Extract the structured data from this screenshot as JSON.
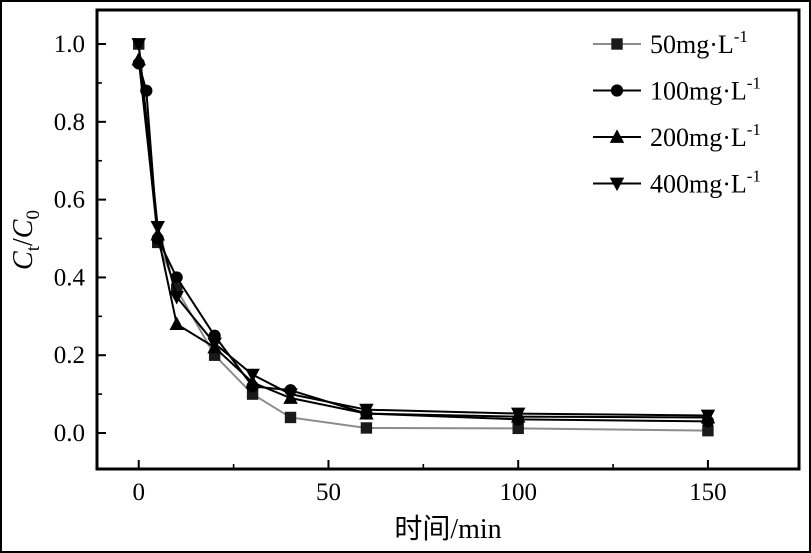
{
  "figure": {
    "background": "#ffffff",
    "border_color": "#000000",
    "frame_color": "#000000"
  },
  "chart_data": {
    "type": "line",
    "title": "",
    "xlabel": "时间/min",
    "ylabel_plain": "Ct/C0",
    "ylabel_parts": [
      {
        "t": "C",
        "i": true
      },
      {
        "t": "t",
        "s": "sub"
      },
      {
        "t": "/"
      },
      {
        "t": "C",
        "i": true
      },
      {
        "t": "0",
        "s": "sub"
      }
    ],
    "xlim": [
      -11,
      174
    ],
    "ylim": [
      -0.0925,
      1.0875
    ],
    "x_ticks": [
      0,
      50,
      100,
      150
    ],
    "x_tick_labels": [
      "0",
      "50",
      "100",
      "150"
    ],
    "x_minor_ticks": [
      25,
      75,
      125
    ],
    "y_ticks": [
      0.0,
      0.2,
      0.4,
      0.6,
      0.8,
      1.0
    ],
    "y_tick_labels": [
      "0.0",
      "0.2",
      "0.4",
      "0.6",
      "0.8",
      "1.0"
    ],
    "y_minor_ticks": [
      0.1,
      0.3,
      0.5,
      0.7,
      0.9
    ],
    "grid": false,
    "legend_position": "top-right",
    "x": [
      0,
      5,
      10,
      20,
      30,
      40,
      60,
      100,
      150
    ],
    "series": [
      {
        "name": "50mg·L",
        "exp": "-1",
        "marker": "square",
        "line_color": "#8c8c8c",
        "marker_color": "#1a1a1a",
        "values": [
          1.0,
          0.49,
          0.37,
          0.2,
          0.1,
          0.04,
          0.013,
          0.012,
          0.006
        ]
      },
      {
        "name": "100mg·L",
        "exp": "-1",
        "marker": "circle",
        "line_color": "#000000",
        "marker_color": "#000000",
        "x": [
          0,
          2,
          5,
          10,
          20,
          30,
          40,
          60,
          100,
          150
        ],
        "values": [
          0.95,
          0.88,
          0.5,
          0.4,
          0.25,
          0.12,
          0.11,
          0.05,
          0.035,
          0.03
        ]
      },
      {
        "name": "200mg·L",
        "exp": "-1",
        "marker": "triangle-up",
        "line_color": "#000000",
        "marker_color": "#000000",
        "values": [
          0.96,
          0.51,
          0.28,
          0.22,
          0.13,
          0.09,
          0.05,
          0.042,
          0.04
        ]
      },
      {
        "name": "400mg·L",
        "exp": "-1",
        "marker": "triangle-down",
        "line_color": "#000000",
        "marker_color": "#000000",
        "values": [
          1.0,
          0.53,
          0.35,
          0.23,
          0.15,
          0.1,
          0.06,
          0.05,
          0.045
        ]
      }
    ]
  }
}
